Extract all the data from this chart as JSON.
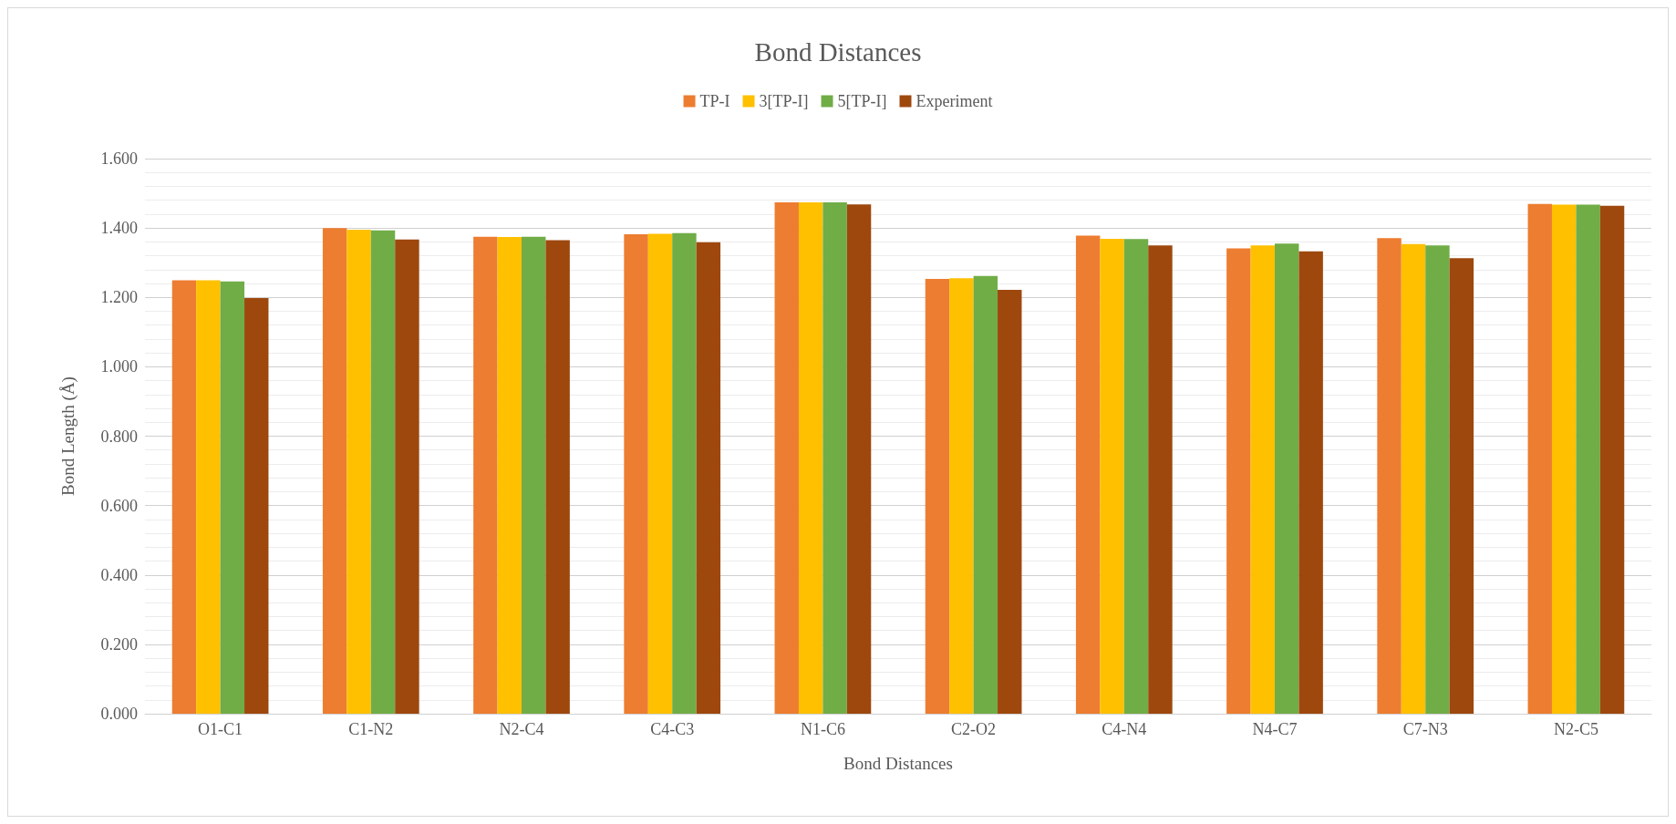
{
  "chart_data": {
    "type": "bar",
    "title": "Bond Distances",
    "xlabel": "Bond Distances",
    "ylabel": "Bond Length (Å)",
    "categories": [
      "O1-C1",
      "C1-N2",
      "N2-C4",
      "C4-C3",
      "N1-C6",
      "C2-O2",
      "C4-N4",
      "N4-C7",
      "C7-N3",
      "N2-C5"
    ],
    "series": [
      {
        "name": "TP-I",
        "color": "#ed7d31",
        "values": [
          1.249,
          1.4,
          1.375,
          1.382,
          1.474,
          1.253,
          1.378,
          1.341,
          1.371,
          1.469
        ]
      },
      {
        "name": "3[TP-I]",
        "color": "#ffc000",
        "values": [
          1.249,
          1.395,
          1.374,
          1.383,
          1.474,
          1.255,
          1.369,
          1.35,
          1.354,
          1.467
        ]
      },
      {
        "name": "5[TP-I]",
        "color": "#70ad47",
        "values": [
          1.246,
          1.393,
          1.375,
          1.385,
          1.474,
          1.262,
          1.368,
          1.355,
          1.35,
          1.467
        ]
      },
      {
        "name": "Experiment",
        "color": "#9e480e",
        "values": [
          1.198,
          1.367,
          1.365,
          1.359,
          1.468,
          1.222,
          1.35,
          1.333,
          1.313,
          1.464
        ]
      }
    ],
    "ylim": [
      0,
      1.6
    ],
    "yticks": [
      {
        "value": 0,
        "label": "0.000"
      },
      {
        "value": 0.04,
        "label": null
      },
      {
        "value": 0.08,
        "label": null
      },
      {
        "value": 0.12,
        "label": null
      },
      {
        "value": 0.16,
        "label": null
      },
      {
        "value": 0.2,
        "label": "0.200"
      },
      {
        "value": 0.24,
        "label": null
      },
      {
        "value": 0.28,
        "label": null
      },
      {
        "value": 0.32,
        "label": null
      },
      {
        "value": 0.36,
        "label": null
      },
      {
        "value": 0.4,
        "label": "0.400"
      },
      {
        "value": 0.44,
        "label": null
      },
      {
        "value": 0.48,
        "label": null
      },
      {
        "value": 0.52,
        "label": null
      },
      {
        "value": 0.56,
        "label": null
      },
      {
        "value": 0.6,
        "label": "0.600"
      },
      {
        "value": 0.64,
        "label": null
      },
      {
        "value": 0.68,
        "label": null
      },
      {
        "value": 0.72,
        "label": null
      },
      {
        "value": 0.76,
        "label": null
      },
      {
        "value": 0.8,
        "label": "0.800"
      },
      {
        "value": 0.84,
        "label": null
      },
      {
        "value": 0.88,
        "label": null
      },
      {
        "value": 0.92,
        "label": null
      },
      {
        "value": 0.96,
        "label": null
      },
      {
        "value": 1.0,
        "label": "1.000"
      },
      {
        "value": 1.04,
        "label": null
      },
      {
        "value": 1.08,
        "label": null
      },
      {
        "value": 1.12,
        "label": null
      },
      {
        "value": 1.16,
        "label": null
      },
      {
        "value": 1.2,
        "label": "1.200"
      },
      {
        "value": 1.24,
        "label": null
      },
      {
        "value": 1.28,
        "label": null
      },
      {
        "value": 1.32,
        "label": null
      },
      {
        "value": 1.36,
        "label": null
      },
      {
        "value": 1.4,
        "label": "1.400"
      },
      {
        "value": 1.44,
        "label": null
      },
      {
        "value": 1.48,
        "label": null
      },
      {
        "value": 1.52,
        "label": null
      },
      {
        "value": 1.56,
        "label": null
      },
      {
        "value": 1.6,
        "label": "1.600"
      }
    ],
    "grid": "y",
    "legend": "top"
  }
}
